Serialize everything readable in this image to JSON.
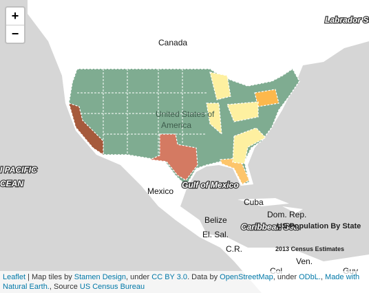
{
  "zoom": {
    "in": "+",
    "out": "−"
  },
  "places": {
    "canada": "Canada",
    "labrador_sea": "Labrador Sea",
    "usa_line1": "United States of",
    "usa_line2": "America",
    "pacific_line1": "I PACIFIC",
    "pacific_line2": "CEAN",
    "gulf": "Gulf of Mexico",
    "mexico": "Mexico",
    "cuba": "Cuba",
    "dom_rep": "Dom. Rep.",
    "belize": "Belize",
    "caribbean": "Caribbean Sea",
    "el_sal": "El. Sal.",
    "cr": "C.R.",
    "ven": "Ven.",
    "guy": "Guy",
    "col": "Col"
  },
  "legend": {
    "title": "US Population By State",
    "subtitle": "2013 Census Estimates"
  },
  "attribution": [
    "Leaflet",
    " | Map tiles by ",
    "Stamen Design",
    ", under ",
    "CC BY 3.0",
    ". Data by ",
    "OpenStreetMap",
    ", under ",
    "ODbL.",
    ", ",
    "Made with Natural Earth.",
    ", Source ",
    "US Census Bureau"
  ]
}
